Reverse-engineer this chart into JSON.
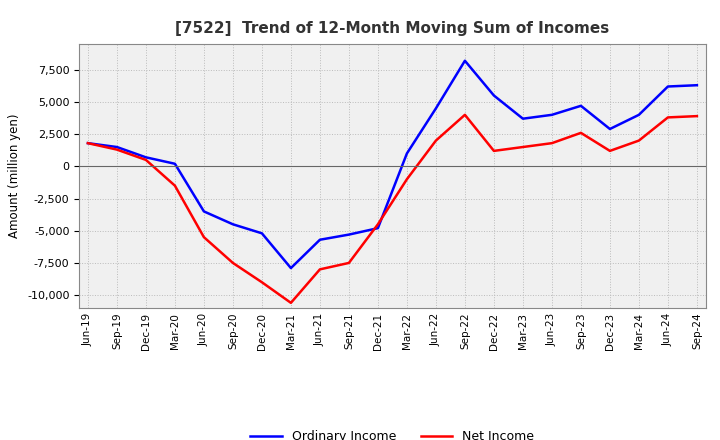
{
  "title": "[7522]  Trend of 12-Month Moving Sum of Incomes",
  "ylabel": "Amount (million yen)",
  "background_color": "#ffffff",
  "plot_bg_color": "#f0f0f0",
  "grid_color": "#bbbbbb",
  "line_color_ordinary": "#0000ff",
  "line_color_net": "#ff0000",
  "ylim": [
    -11000,
    9500
  ],
  "yticks": [
    -10000,
    -7500,
    -5000,
    -2500,
    0,
    2500,
    5000,
    7500
  ],
  "legend_labels": [
    "Ordinary Income",
    "Net Income"
  ],
  "x_labels": [
    "Jun-19",
    "Sep-19",
    "Dec-19",
    "Mar-20",
    "Jun-20",
    "Sep-20",
    "Dec-20",
    "Mar-21",
    "Jun-21",
    "Sep-21",
    "Dec-21",
    "Mar-22",
    "Jun-22",
    "Sep-22",
    "Dec-22",
    "Mar-23",
    "Jun-23",
    "Sep-23",
    "Dec-23",
    "Mar-24",
    "Jun-24",
    "Sep-24"
  ],
  "ordinary_income": [
    1800,
    1500,
    700,
    200,
    -3500,
    -4500,
    -5200,
    -7900,
    -5700,
    -5300,
    -4800,
    1000,
    4500,
    8200,
    5500,
    3700,
    4000,
    4700,
    2900,
    4000,
    6200,
    6300
  ],
  "net_income": [
    1800,
    1300,
    500,
    -1500,
    -5500,
    -7500,
    -9000,
    -10600,
    -8000,
    -7500,
    -4500,
    -1000,
    2000,
    4000,
    1200,
    1500,
    1800,
    2600,
    1200,
    2000,
    3800,
    3900
  ]
}
